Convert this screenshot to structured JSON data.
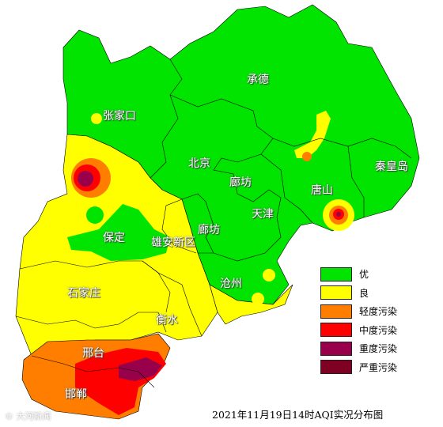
{
  "map": {
    "cities": [
      "张家口",
      "承德",
      "北京",
      "秦皇岛",
      "廊坊",
      "唐山",
      "天津",
      "廊坊",
      "保定",
      "雄安新区",
      "沧州",
      "石家庄",
      "衡水",
      "邢台",
      "邯郸"
    ],
    "levels": [
      {
        "label": "优",
        "color": "#00e400"
      },
      {
        "label": "良",
        "color": "#ffff00"
      },
      {
        "label": "轻度污染",
        "color": "#ff7e00"
      },
      {
        "label": "中度污染",
        "color": "#ff0000"
      },
      {
        "label": "重度污染",
        "color": "#99004c"
      },
      {
        "label": "严重污染",
        "color": "#7e0023"
      }
    ]
  },
  "caption": "2021年11月19日14时AQI实况分布图",
  "watermark": "© 大河新闻"
}
